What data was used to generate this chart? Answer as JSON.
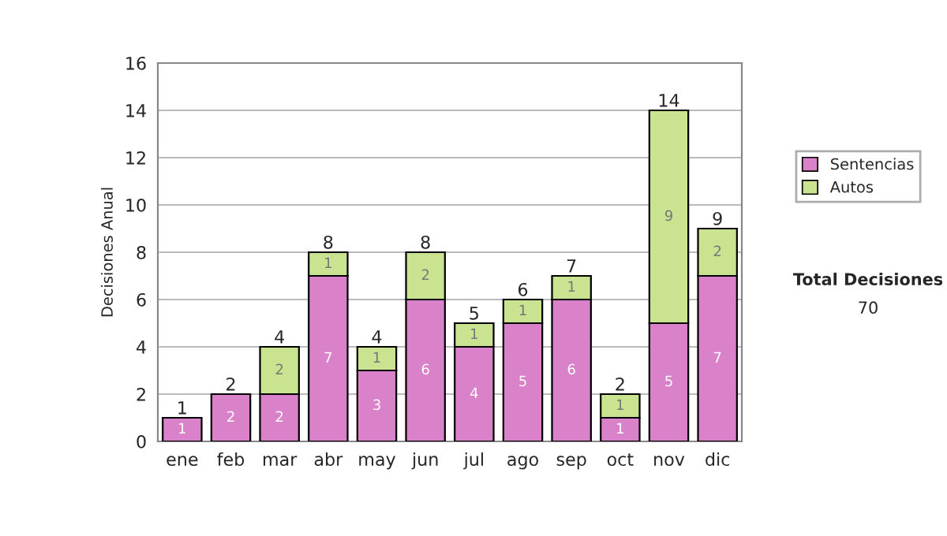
{
  "chart_data": {
    "type": "bar",
    "stacked": true,
    "ylabel": "Decisiones Anual",
    "categories": [
      "ene",
      "feb",
      "mar",
      "abr",
      "may",
      "jun",
      "jul",
      "ago",
      "sep",
      "oct",
      "nov",
      "dic"
    ],
    "series": [
      {
        "name": "Sentencias",
        "color": "#d982c9",
        "values": [
          1,
          2,
          2,
          7,
          3,
          6,
          4,
          5,
          6,
          1,
          5,
          7
        ],
        "value_labels": [
          "1",
          "2",
          "2",
          "7",
          "3",
          "6",
          "4",
          "5",
          "6",
          "1",
          "5",
          "7"
        ]
      },
      {
        "name": "Autos",
        "color": "#c9e391",
        "values": [
          null,
          null,
          2,
          1,
          1,
          2,
          1,
          1,
          1,
          1,
          9,
          2
        ],
        "value_labels": [
          null,
          null,
          "2",
          "1",
          "1",
          "2",
          "1",
          "1",
          "1",
          "1",
          "9",
          "2"
        ]
      }
    ],
    "totals": [
      "1",
      "2",
      "4",
      "8",
      "4",
      "8",
      "5",
      "6",
      "7",
      "2",
      "14",
      "9"
    ],
    "ylim": [
      0,
      16
    ],
    "yticks": [
      0,
      2,
      4,
      6,
      8,
      10,
      12,
      14,
      16
    ],
    "grid": "y",
    "legend": "right",
    "annotations": [
      "Total Decisiones",
      "70"
    ]
  }
}
